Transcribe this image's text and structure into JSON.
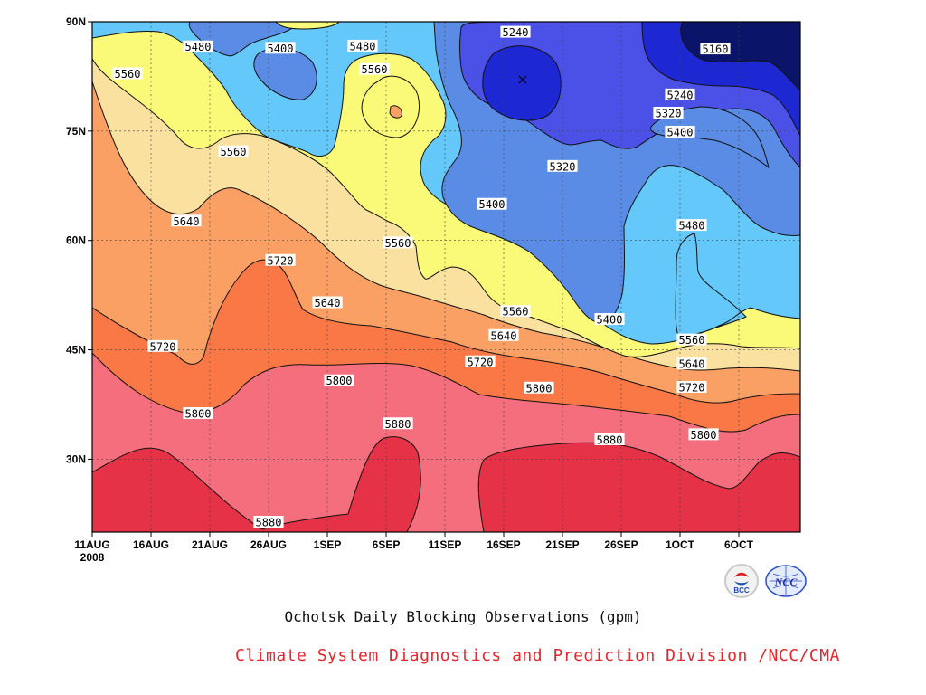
{
  "chart_data": {
    "type": "heatmap",
    "title": "Ochotsk Daily Blocking Observations (gpm)",
    "credit": "Climate System Diagnostics and Prediction Division /NCC/CMA",
    "x_ticks": [
      "11AUG",
      "16AUG",
      "21AUG",
      "26AUG",
      "1SEP",
      "6SEP",
      "11SEP",
      "16SEP",
      "21SEP",
      "26SEP",
      "1OCT",
      "6OCT"
    ],
    "x_year": "2008",
    "y_ticks": [
      "30N",
      "45N",
      "60N",
      "75N",
      "90N"
    ],
    "y_tick_values": [
      30,
      45,
      60,
      75,
      90
    ],
    "ylim": [
      20,
      90
    ],
    "x_days": [
      "2008-08-11",
      "2008-10-09"
    ],
    "grid": true,
    "contour_levels": [
      5160,
      5240,
      5320,
      5400,
      5480,
      5560,
      5640,
      5720,
      5800,
      5880
    ],
    "band_colors": [
      "#0a1468",
      "#1e28d2",
      "#4b50e6",
      "#5a8ce6",
      "#64c8fa",
      "#fafa78",
      "#fae1a0",
      "#faa064",
      "#fa7846",
      "#f56e7d",
      "#e63246"
    ],
    "contour_labels": [
      {
        "value": 5480,
        "date": "2008-08-20",
        "lat": 86.5
      },
      {
        "value": 5560,
        "date": "2008-08-14",
        "lat": 82.8
      },
      {
        "value": 5400,
        "date": "2008-08-27",
        "lat": 86.3
      },
      {
        "value": 5480,
        "date": "2008-09-03",
        "lat": 86.6
      },
      {
        "value": 5560,
        "date": "2008-09-04",
        "lat": 83.4
      },
      {
        "value": 5240,
        "date": "2008-09-16",
        "lat": 88.5
      },
      {
        "value": 5160,
        "date": "2008-10-03",
        "lat": 86.2
      },
      {
        "value": 5240,
        "date": "2008-09-30",
        "lat": 79.9
      },
      {
        "value": 5320,
        "date": "2008-09-29",
        "lat": 77.4
      },
      {
        "value": 5400,
        "date": "2008-09-30",
        "lat": 74.8
      },
      {
        "value": 5320,
        "date": "2008-09-20",
        "lat": 70.1
      },
      {
        "value": 5560,
        "date": "2008-08-23",
        "lat": 72.1
      },
      {
        "value": 5400,
        "date": "2008-09-14",
        "lat": 64.9
      },
      {
        "value": 5640,
        "date": "2008-08-19",
        "lat": 62.6
      },
      {
        "value": 5560,
        "date": "2008-09-06",
        "lat": 59.6
      },
      {
        "value": 5480,
        "date": "2008-10-01",
        "lat": 62.0
      },
      {
        "value": 5720,
        "date": "2008-08-27",
        "lat": 57.2
      },
      {
        "value": 5640,
        "date": "2008-08-31",
        "lat": 51.4
      },
      {
        "value": 5560,
        "date": "2008-09-16",
        "lat": 50.2
      },
      {
        "value": 5400,
        "date": "2008-09-24",
        "lat": 49.1
      },
      {
        "value": 5640,
        "date": "2008-09-15",
        "lat": 46.9
      },
      {
        "value": 5560,
        "date": "2008-10-01",
        "lat": 46.3
      },
      {
        "value": 5720,
        "date": "2008-08-17",
        "lat": 45.4
      },
      {
        "value": 5640,
        "date": "2008-10-01",
        "lat": 43.0
      },
      {
        "value": 5720,
        "date": "2008-09-13",
        "lat": 43.3
      },
      {
        "value": 5720,
        "date": "2008-10-01",
        "lat": 39.8
      },
      {
        "value": 5800,
        "date": "2008-09-01",
        "lat": 40.7
      },
      {
        "value": 5800,
        "date": "2008-09-18",
        "lat": 39.7
      },
      {
        "value": 5800,
        "date": "2008-08-20",
        "lat": 36.2
      },
      {
        "value": 5800,
        "date": "2008-10-02",
        "lat": 33.3
      },
      {
        "value": 5880,
        "date": "2008-09-06",
        "lat": 34.8
      },
      {
        "value": 5880,
        "date": "2008-09-24",
        "lat": 32.6
      },
      {
        "value": 5880,
        "date": "2008-08-26",
        "lat": 21.3
      }
    ]
  },
  "logos": [
    {
      "name": "bcc-logo",
      "text": "BCC"
    },
    {
      "name": "ncc-logo",
      "text": "NCC"
    }
  ]
}
